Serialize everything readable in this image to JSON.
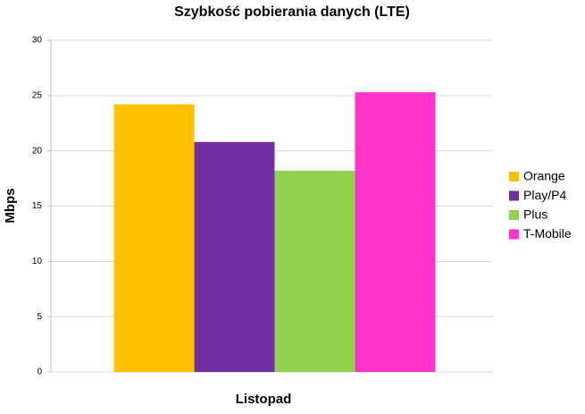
{
  "chart_data": {
    "type": "bar",
    "title": "Szybkość pobierania danych (LTE)",
    "x_label": "Listopad",
    "y_label": "Mbps",
    "categories": [
      null
    ],
    "series": [
      {
        "name": "Orange",
        "color": "#ffc000",
        "values": [
          24.2
        ]
      },
      {
        "name": "Play/P4",
        "color": "#7030a0",
        "values": [
          20.8
        ]
      },
      {
        "name": "Plus",
        "color": "#92d050",
        "values": [
          18.2
        ]
      },
      {
        "name": "T-Mobile",
        "color": "#ff33cc",
        "values": [
          25.3
        ]
      }
    ],
    "ylim": [
      0,
      30
    ],
    "yticks": [
      0,
      5,
      10,
      15,
      20,
      25,
      30
    ],
    "grid": true,
    "legend": "right"
  }
}
